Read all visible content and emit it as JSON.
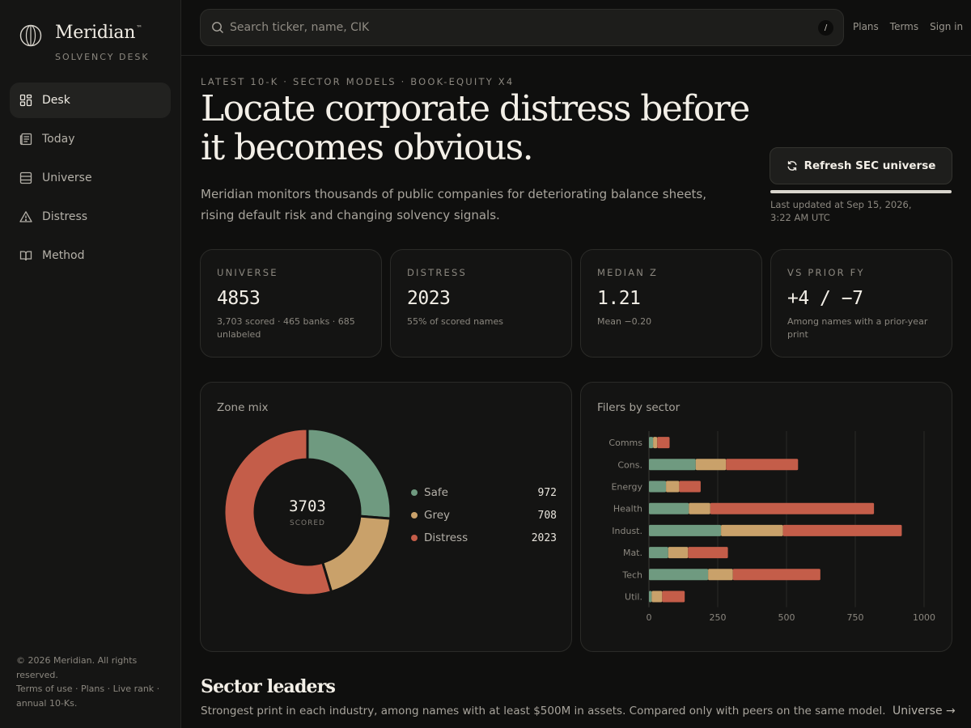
{
  "brand": {
    "name": "Meridian",
    "tm": "™",
    "subtitle": "SOLVENCY DESK"
  },
  "nav": [
    {
      "label": "Desk",
      "icon": "dashboard-icon",
      "active": true
    },
    {
      "label": "Today",
      "icon": "newspaper-icon"
    },
    {
      "label": "Universe",
      "icon": "table-icon"
    },
    {
      "label": "Distress",
      "icon": "warning-icon"
    },
    {
      "label": "Method",
      "icon": "book-icon"
    }
  ],
  "footer": {
    "copyright": "© 2026 Meridian. All rights reserved.",
    "links": [
      "Terms of use",
      "Plans",
      "Live rank",
      "annual 10-Ks."
    ]
  },
  "search": {
    "placeholder": "Search ticker, name, CIK",
    "shortcut": "/"
  },
  "top_links": [
    "Plans",
    "Terms",
    "Sign in"
  ],
  "hero": {
    "eyebrow": "LATEST 10-K · SECTOR MODELS · BOOK-EQUITY X4",
    "headline": "Locate corporate distress before it becomes obvious.",
    "lede": "Meridian monitors thousands of public companies for deteriorating balance sheets, rising default risk and changing solvency signals.",
    "refresh_label": "Refresh SEC universe",
    "progress": 1.0,
    "updated": "Last updated at Sep 15, 2026, 3:22 AM UTC"
  },
  "stats": [
    {
      "label": "UNIVERSE",
      "value": "4853",
      "note": "3,703 scored · 465 banks · 685 unlabeled"
    },
    {
      "label": "DISTRESS",
      "value": "2023",
      "note": "55% of scored names"
    },
    {
      "label": "MEDIAN Z",
      "value": "1.21",
      "note": "Mean −0.20"
    },
    {
      "label": "VS PRIOR FY",
      "value": "+4 / −7",
      "note": "Among names with a prior-year print"
    }
  ],
  "colors": {
    "safe": "#6f9a80",
    "grey": "#c9a16a",
    "distress": "#c45d49",
    "grid": "#2a2a27"
  },
  "zone_mix": {
    "title": "Zone mix",
    "total": "3703",
    "total_label": "SCORED",
    "items": [
      {
        "name": "Safe",
        "value": 972,
        "color": "#6f9a80"
      },
      {
        "name": "Grey",
        "value": 708,
        "color": "#c9a16a"
      },
      {
        "name": "Distress",
        "value": 2023,
        "color": "#c45d49"
      }
    ]
  },
  "sector_chart": {
    "title": "Filers by sector",
    "xticks": [
      "0",
      "250",
      "500",
      "750",
      "1000"
    ]
  },
  "chart_data": [
    {
      "type": "pie",
      "title": "Zone mix",
      "categories": [
        "Safe",
        "Grey",
        "Distress"
      ],
      "values": [
        972,
        708,
        2023
      ],
      "center_value": "3703",
      "center_label": "SCORED"
    },
    {
      "type": "bar",
      "orientation": "horizontal",
      "stacked": true,
      "title": "Filers by sector",
      "categories": [
        "Comms",
        "Cons.",
        "Energy",
        "Health",
        "Indust.",
        "Mat.",
        "Tech",
        "Util."
      ],
      "series": [
        {
          "name": "Safe",
          "values": [
            15,
            170,
            62,
            145,
            262,
            70,
            215,
            10
          ]
        },
        {
          "name": "Grey",
          "values": [
            15,
            110,
            48,
            78,
            225,
            72,
            90,
            38
          ]
        },
        {
          "name": "Distress",
          "values": [
            45,
            262,
            78,
            595,
            432,
            145,
            318,
            82
          ]
        }
      ],
      "xlim": [
        0,
        1000
      ],
      "xticks": [
        0,
        250,
        500,
        750,
        1000
      ],
      "grid": true
    }
  ],
  "sector_leaders": {
    "title": "Sector leaders",
    "subtitle": "Strongest print in each industry, among names with at least $500M in assets. Compared only with peers on the same model.",
    "link": "Universe →"
  }
}
